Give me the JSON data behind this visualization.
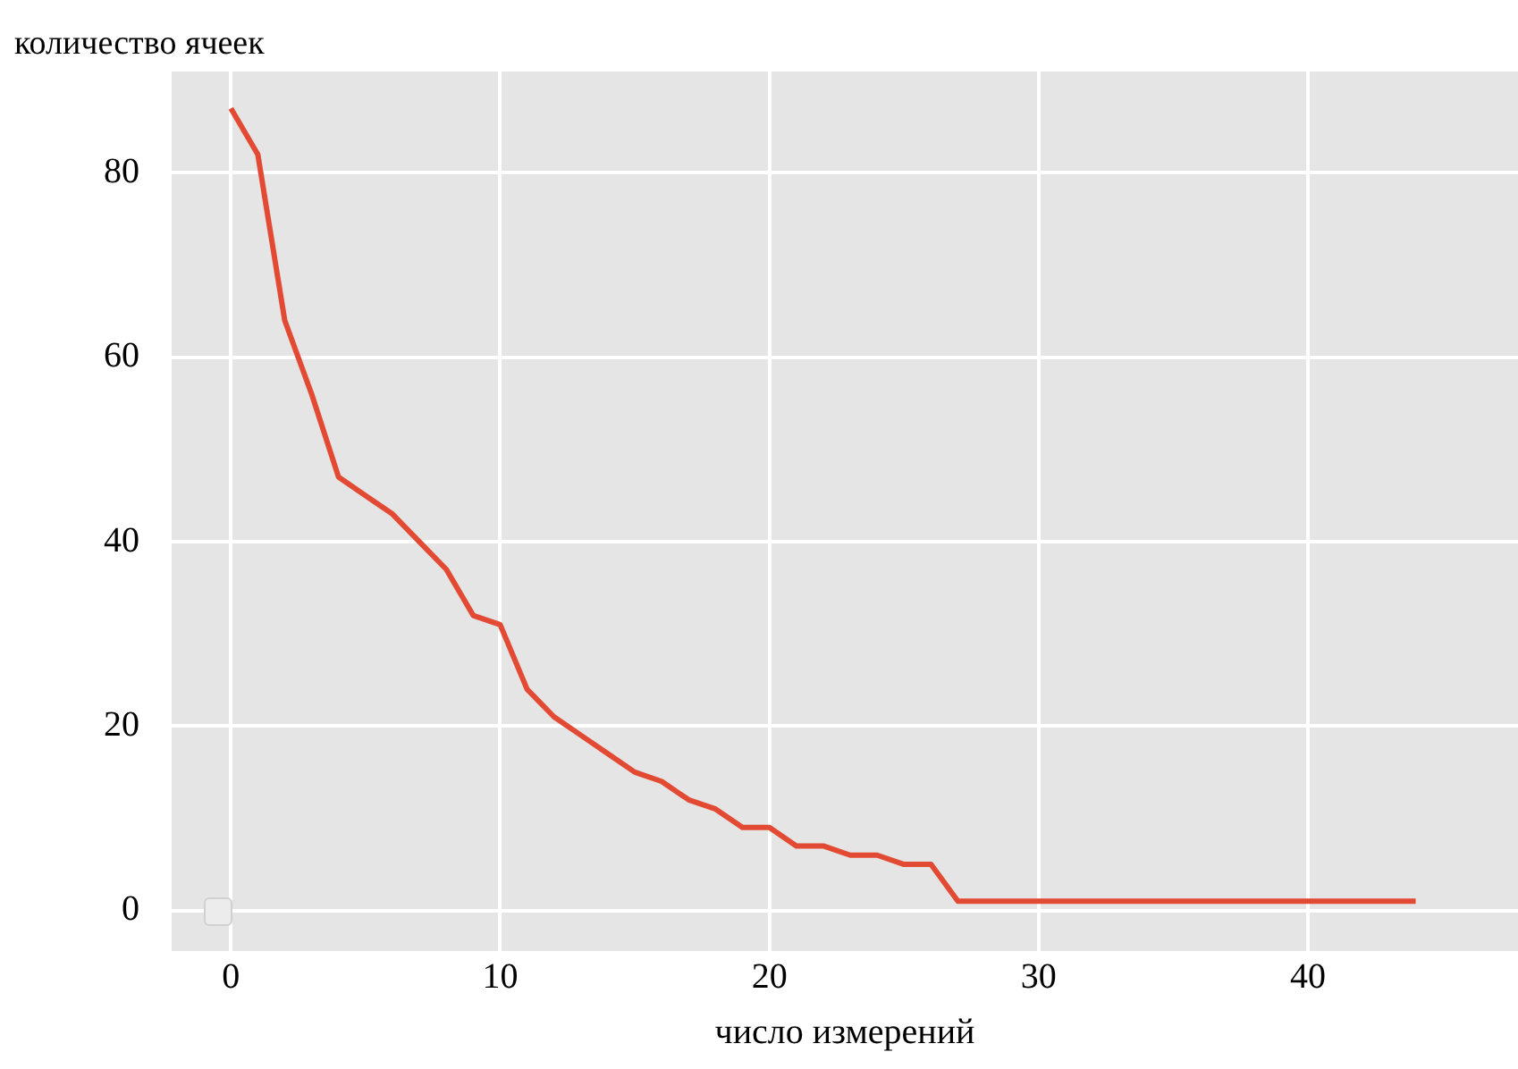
{
  "chart_data": {
    "type": "line",
    "xlabel": "число измерений",
    "ylabel": "количество ячеек",
    "x": [
      0,
      1,
      2,
      3,
      4,
      5,
      6,
      7,
      8,
      9,
      10,
      11,
      12,
      13,
      14,
      15,
      16,
      17,
      18,
      19,
      20,
      21,
      22,
      23,
      24,
      25,
      26,
      27,
      28,
      29,
      30,
      31,
      32,
      33,
      34,
      35,
      36,
      37,
      38,
      39,
      40,
      41,
      42,
      43,
      44
    ],
    "series": [
      {
        "color": "#e24a33",
        "values": [
          87,
          82,
          64,
          56,
          47,
          45,
          43,
          40,
          37,
          32,
          31,
          24,
          21,
          19,
          17,
          15,
          14,
          12,
          11,
          9,
          9,
          7,
          7,
          6,
          6,
          5,
          5,
          1,
          1,
          1,
          1,
          1,
          1,
          1,
          1,
          1,
          1,
          1,
          1,
          1,
          1,
          1,
          1,
          1,
          1
        ]
      }
    ],
    "xlim": [
      -2.2,
      47.8
    ],
    "xticks": [
      0,
      10,
      20,
      30,
      40
    ],
    "ylim": [
      -4.4,
      91
    ],
    "yticks": [
      0,
      20,
      40,
      60,
      80
    ],
    "grid": true,
    "legend": false,
    "marker": "none",
    "line_style": "solid"
  }
}
